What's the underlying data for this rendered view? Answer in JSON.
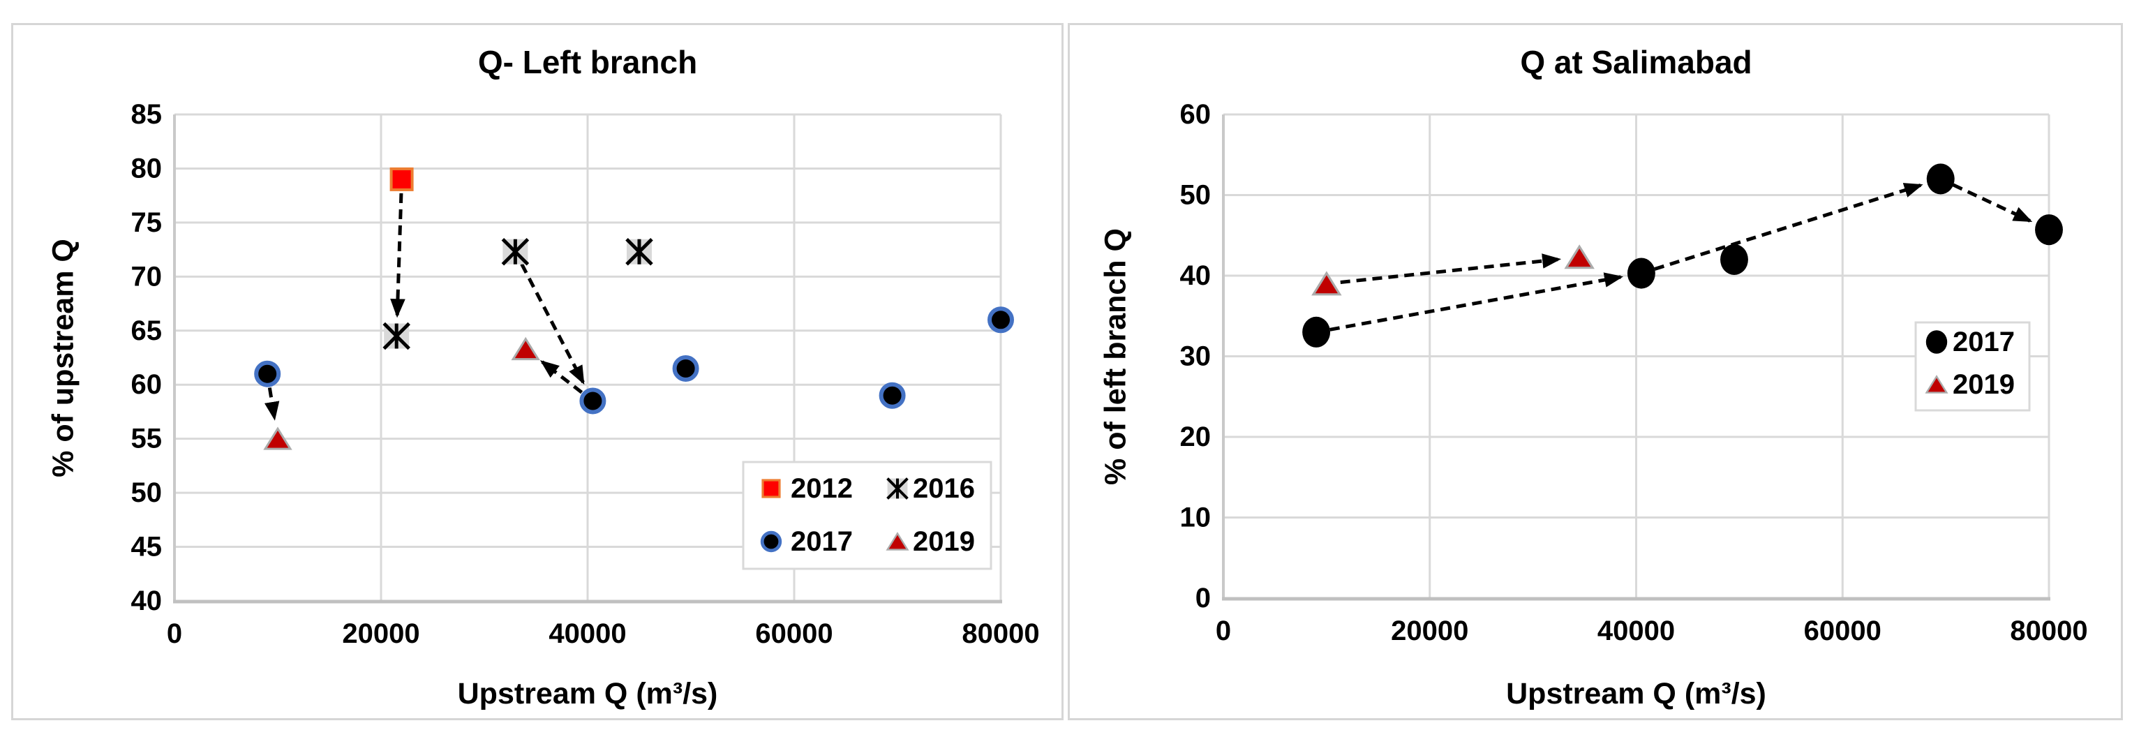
{
  "page": {
    "background": "#ffffff"
  },
  "chart_data": [
    {
      "type": "scatter",
      "title": "Q- Left branch",
      "xlabel": "Upstream Q (m³/s)",
      "ylabel": "% of upstream Q",
      "xlim": [
        0,
        80000
      ],
      "ylim": [
        40,
        85
      ],
      "xticks": [
        0,
        20000,
        40000,
        60000,
        80000
      ],
      "yticks": [
        40,
        45,
        50,
        55,
        60,
        65,
        70,
        75,
        80,
        85
      ],
      "grid": true,
      "gridline_color": "#d9d9d9",
      "legend_position": "inside-lower-right-2x2",
      "series": [
        {
          "name": "2012",
          "marker": "square",
          "fill": "#fe0000",
          "edge": "#ed7d31",
          "points": [
            [
              22000,
              79
            ]
          ]
        },
        {
          "name": "2016",
          "marker": "asterisk",
          "fill": "#000000",
          "edge": "#d9d9d9",
          "points": [
            [
              21500,
              64.5
            ],
            [
              33000,
              72.3
            ],
            [
              45000,
              72.3
            ]
          ]
        },
        {
          "name": "2017",
          "marker": "circle",
          "fill": "#000000",
          "edge": "#4472c4",
          "points": [
            [
              9000,
              61
            ],
            [
              40500,
              58.5
            ],
            [
              49500,
              61.5
            ],
            [
              69500,
              59
            ],
            [
              80000,
              66
            ]
          ]
        },
        {
          "name": "2019",
          "marker": "triangle",
          "fill": "#c00000",
          "edge": "#ababab",
          "points": [
            [
              10000,
              55
            ],
            [
              34000,
              63.3
            ]
          ]
        }
      ],
      "arrows": [
        {
          "from": [
            22000,
            79
          ],
          "to": [
            21500,
            64.5
          ]
        },
        {
          "from": [
            9000,
            61
          ],
          "to": [
            10000,
            55
          ]
        },
        {
          "from": [
            33000,
            72.3
          ],
          "to": [
            40500,
            58.5
          ]
        },
        {
          "from": [
            40500,
            58.5
          ],
          "to": [
            34000,
            63.3
          ]
        }
      ]
    },
    {
      "type": "scatter",
      "title": "Q at Salimabad",
      "xlabel": "Upstream Q (m³/s)",
      "ylabel": "% of left branch Q",
      "xlim": [
        0,
        80000
      ],
      "ylim": [
        0,
        60
      ],
      "xticks": [
        0,
        20000,
        40000,
        60000,
        80000
      ],
      "yticks": [
        0,
        10,
        20,
        30,
        40,
        50,
        60
      ],
      "grid": true,
      "gridline_color": "#d9d9d9",
      "legend_position": "inside-right-stacked",
      "series": [
        {
          "name": "2017",
          "marker": "circle-solid",
          "fill": "#000000",
          "edge": "#000000",
          "points": [
            [
              9000,
              33
            ],
            [
              40500,
              40.3
            ],
            [
              49500,
              42
            ],
            [
              69500,
              52
            ],
            [
              80000,
              45.7
            ]
          ]
        },
        {
          "name": "2019",
          "marker": "triangle",
          "fill": "#c00000",
          "edge": "#ababab",
          "points": [
            [
              10000,
              39
            ],
            [
              34500,
              42.3
            ]
          ]
        }
      ],
      "arrows": [
        {
          "from": [
            9000,
            33
          ],
          "to": [
            40500,
            40.3
          ]
        },
        {
          "from": [
            10000,
            39
          ],
          "to": [
            34500,
            42.3
          ]
        },
        {
          "from": [
            40500,
            40.3
          ],
          "to": [
            69500,
            52
          ]
        },
        {
          "from": [
            69500,
            52
          ],
          "to": [
            80000,
            45.7
          ]
        }
      ]
    }
  ]
}
